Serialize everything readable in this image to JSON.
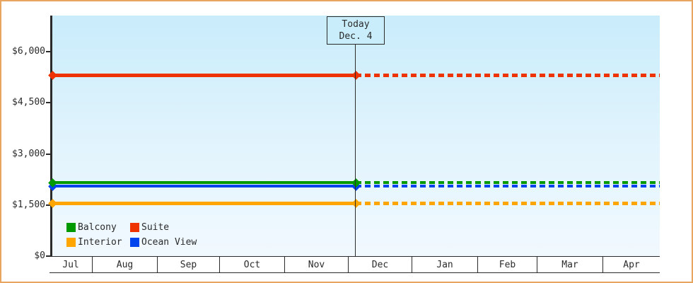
{
  "page": {
    "border_color": "#E8A55F",
    "background_color": "#FFFFFF",
    "plot_gradient_top": "#C9ECFB",
    "plot_gradient_bottom": "#F1F9FE",
    "axis_color": "#2B2B2B"
  },
  "today_box": {
    "line1": "Today",
    "line2": "Dec. 4"
  },
  "chart_data": {
    "type": "line",
    "title": "",
    "xlabel": "",
    "ylabel": "",
    "x_categories": [
      "Jul",
      "Aug",
      "Sep",
      "Oct",
      "Nov",
      "Dec",
      "Jan",
      "Feb",
      "Mar",
      "Apr"
    ],
    "y_ticks": [
      {
        "label": "$0",
        "value": 0
      },
      {
        "label": "$1,500",
        "value": 1500
      },
      {
        "label": "$3,000",
        "value": 3000
      },
      {
        "label": "$4,500",
        "value": 4500
      },
      {
        "label": "$6,000",
        "value": 6000
      }
    ],
    "ylim": [
      0,
      7050
    ],
    "grid": false,
    "today_marker": {
      "label": "Today",
      "date": "Dec. 4",
      "between": [
        "Dec 4"
      ]
    },
    "series": [
      {
        "name": "Ocean View",
        "color": "#0044EE",
        "value": 2050,
        "style": "solid-before-today-dashed-after",
        "thickness": 4
      },
      {
        "name": "Balcony",
        "color": "#009900",
        "value": 2150,
        "style": "solid-before-today-dashed-after",
        "thickness": 4
      },
      {
        "name": "Suite",
        "color": "#EE3300",
        "value": 5300,
        "style": "solid-before-today-dashed-after",
        "thickness": 5
      },
      {
        "name": "Interior",
        "color": "#FFA500",
        "value": 1550,
        "style": "solid-before-today-dashed-after",
        "thickness": 5
      }
    ],
    "legend": [
      {
        "label": "Balcony",
        "color": "#009900"
      },
      {
        "label": "Suite",
        "color": "#EE3300"
      },
      {
        "label": "Interior",
        "color": "#FFA500"
      },
      {
        "label": "Ocean View",
        "color": "#0044EE"
      }
    ],
    "legend_position": "bottom-left"
  }
}
